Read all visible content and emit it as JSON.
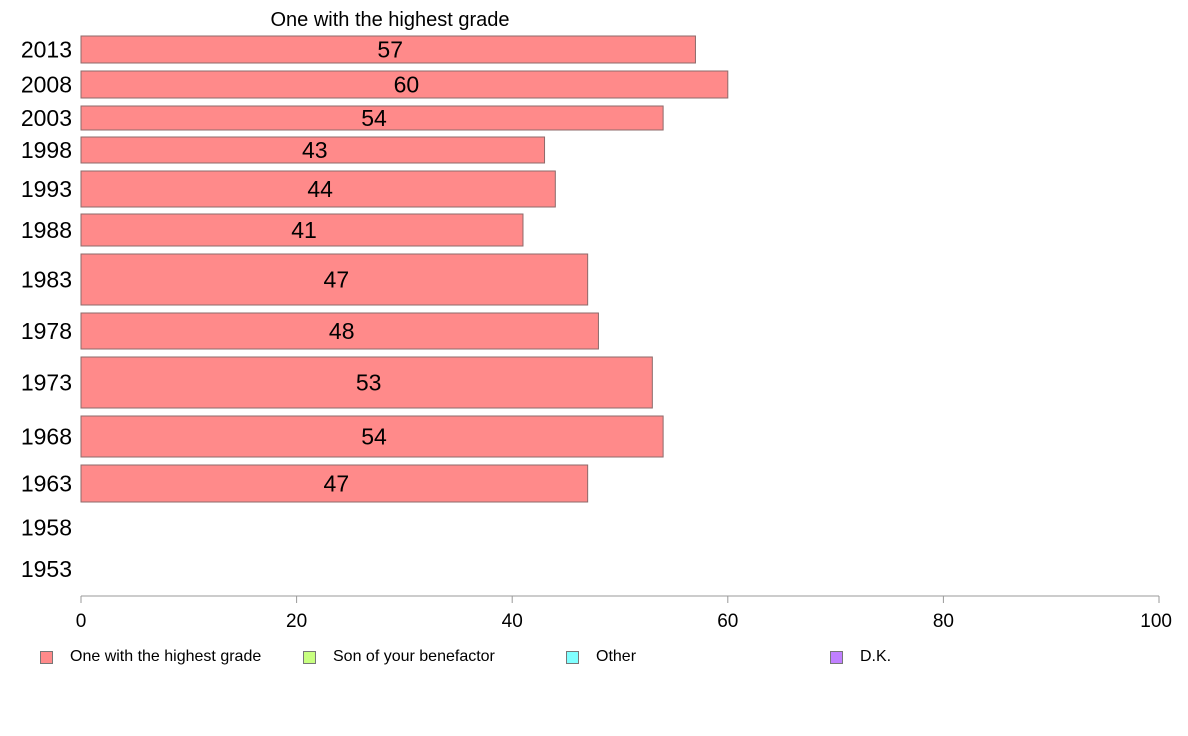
{
  "chart_data": {
    "type": "bar",
    "orientation": "horizontal",
    "title": "One with the highest grade",
    "categories": [
      "2013",
      "2008",
      "2003",
      "1998",
      "1993",
      "1988",
      "1983",
      "1978",
      "1973",
      "1968",
      "1963",
      "1958",
      "1953"
    ],
    "series": [
      {
        "name": "One with the highest grade",
        "color": "#ff8a8a",
        "values": [
          57,
          60,
          54,
          43,
          44,
          41,
          47,
          48,
          53,
          54,
          47,
          null,
          null
        ]
      }
    ],
    "xlim": [
      0,
      100
    ],
    "xticks": [
      0,
      20,
      40,
      60,
      80,
      100
    ],
    "legend": {
      "position": "bottom",
      "items": [
        {
          "label": "One with the highest grade",
          "color": "#ff8a8a"
        },
        {
          "label": "Son of your benefactor",
          "color": "#c8ff80"
        },
        {
          "label": "Other",
          "color": "#80ffff"
        },
        {
          "label": "D.K.",
          "color": "#c080ff"
        }
      ]
    }
  }
}
